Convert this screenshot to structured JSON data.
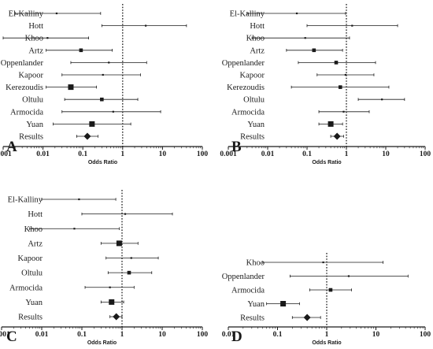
{
  "figure": {
    "colors": {
      "ink": "#1a1a1a",
      "background": "#ffffff"
    },
    "chart_data": [
      {
        "type": "forest",
        "panel": "A",
        "xscale": "log",
        "xlim": [
          0.001,
          100
        ],
        "xticks": [
          "0.001",
          "0.01",
          "0.1",
          "1",
          "10",
          "100"
        ],
        "xlabel": "Odds Ratio",
        "reference_line": 1,
        "rows": [
          {
            "label": "El-Kalliny",
            "or": 0.022,
            "lo": 0.002,
            "hi": 0.28,
            "weight": 1
          },
          {
            "label": "Hott",
            "or": 3.8,
            "lo": 0.3,
            "hi": 40,
            "weight": 1
          },
          {
            "label": "Khoo",
            "or": 0.013,
            "lo": 0.001,
            "hi": 0.14,
            "weight": 1
          },
          {
            "label": "Artz",
            "or": 0.09,
            "lo": 0.012,
            "hi": 0.55,
            "weight": 2
          },
          {
            "label": "Oppenlander",
            "or": 0.45,
            "lo": 0.05,
            "hi": 4,
            "weight": 1
          },
          {
            "label": "Kapoor",
            "or": 0.32,
            "lo": 0.03,
            "hi": 2.8,
            "weight": 1
          },
          {
            "label": "Kerezoudis",
            "or": 0.05,
            "lo": 0.012,
            "hi": 0.22,
            "weight": 3
          },
          {
            "label": "Oltulu",
            "or": 0.3,
            "lo": 0.035,
            "hi": 2.4,
            "weight": 2
          },
          {
            "label": "Armocida",
            "or": 0.58,
            "lo": 0.03,
            "hi": 9,
            "weight": 1
          },
          {
            "label": "Yuan",
            "or": 0.17,
            "lo": 0.018,
            "hi": 1.6,
            "weight": 3
          },
          {
            "label": "Results",
            "or": 0.13,
            "lo": 0.07,
            "hi": 0.24,
            "summary": true
          }
        ]
      },
      {
        "type": "forest",
        "panel": "B",
        "xscale": "log",
        "xlim": [
          0.001,
          100
        ],
        "xticks": [
          "0.001",
          "0.01",
          "0.1",
          "1",
          "10",
          "100"
        ],
        "xlabel": "Odds Ratio",
        "reference_line": 1,
        "rows": [
          {
            "label": "El-Kalliny",
            "or": 0.055,
            "lo": 0.003,
            "hi": 0.95,
            "weight": 1
          },
          {
            "label": "Hott",
            "or": 1.4,
            "lo": 0.1,
            "hi": 20,
            "weight": 1
          },
          {
            "label": "Khoo",
            "or": 0.09,
            "lo": 0.004,
            "hi": 1.2,
            "weight": 1
          },
          {
            "label": "Artz",
            "or": 0.15,
            "lo": 0.03,
            "hi": 0.8,
            "weight": 2
          },
          {
            "label": "Oppenlander",
            "or": 0.55,
            "lo": 0.06,
            "hi": 5.5,
            "weight": 2
          },
          {
            "label": "Kapoor",
            "or": 0.95,
            "lo": 0.18,
            "hi": 5,
            "weight": 1
          },
          {
            "label": "Kerezoudis",
            "or": 0.7,
            "lo": 0.04,
            "hi": 12,
            "weight": 2
          },
          {
            "label": "Oltulu",
            "or": 8,
            "lo": 2,
            "hi": 30,
            "weight": 1
          },
          {
            "label": "Armocida",
            "or": 0.85,
            "lo": 0.2,
            "hi": 3.8,
            "weight": 1
          },
          {
            "label": "Yuan",
            "or": 0.4,
            "lo": 0.2,
            "hi": 0.8,
            "weight": 3
          },
          {
            "label": "Results",
            "or": 0.58,
            "lo": 0.4,
            "hi": 0.85,
            "summary": true
          }
        ]
      },
      {
        "type": "forest",
        "panel": "C",
        "xscale": "log",
        "xlim": [
          0.001,
          100
        ],
        "xticks": [
          "0.001",
          "0.01",
          "0.1",
          "1",
          "10",
          "100"
        ],
        "xlabel": "Odds Ratio",
        "reference_line": 1,
        "rows": [
          {
            "label": "El-Kalliny",
            "or": 0.085,
            "lo": 0.01,
            "hi": 0.7,
            "weight": 1
          },
          {
            "label": "Hott",
            "or": 1.2,
            "lo": 0.1,
            "hi": 18,
            "weight": 1
          },
          {
            "label": "Khoo",
            "or": 0.065,
            "lo": 0.005,
            "hi": 0.85,
            "weight": 1
          },
          {
            "label": "Artz",
            "or": 0.85,
            "lo": 0.3,
            "hi": 2.5,
            "weight": 3
          },
          {
            "label": "Kapoor",
            "or": 1.7,
            "lo": 0.4,
            "hi": 8,
            "weight": 1
          },
          {
            "label": "Oltulu",
            "or": 1.5,
            "lo": 0.45,
            "hi": 5.5,
            "weight": 2
          },
          {
            "label": "Armocida",
            "or": 0.5,
            "lo": 0.12,
            "hi": 2,
            "weight": 1
          },
          {
            "label": "Yuan",
            "or": 0.55,
            "lo": 0.3,
            "hi": 1.1,
            "weight": 3
          },
          {
            "label": "Results",
            "or": 0.72,
            "lo": 0.5,
            "hi": 1.0,
            "summary": true
          }
        ]
      },
      {
        "type": "forest",
        "panel": "D",
        "xscale": "log",
        "xlim": [
          0.01,
          100
        ],
        "xticks": [
          "0.01",
          "0.1",
          "1",
          "10",
          "100"
        ],
        "xlabel": "Odds Ratio",
        "reference_line": 1,
        "rows": [
          {
            "label": "Khoo",
            "or": 0.85,
            "lo": 0.05,
            "hi": 14,
            "weight": 1
          },
          {
            "label": "Oppenlander",
            "or": 2.8,
            "lo": 0.18,
            "hi": 45,
            "weight": 1
          },
          {
            "label": "Armocida",
            "or": 1.2,
            "lo": 0.45,
            "hi": 3.2,
            "weight": 2
          },
          {
            "label": "Yuan",
            "or": 0.13,
            "lo": 0.06,
            "hi": 0.28,
            "weight": 3
          },
          {
            "label": "Results",
            "or": 0.4,
            "lo": 0.2,
            "hi": 0.75,
            "summary": true
          }
        ]
      }
    ]
  }
}
